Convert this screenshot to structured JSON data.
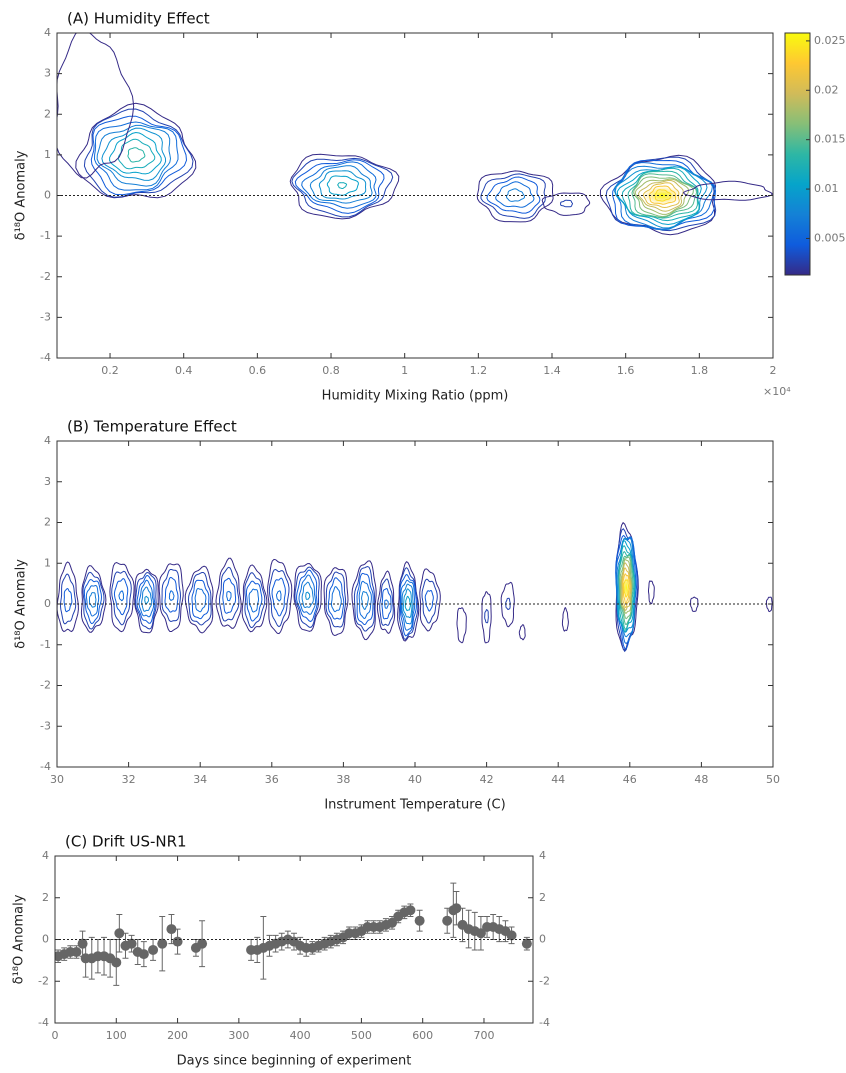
{
  "chart_data": [
    {
      "type": "contour",
      "title": "(A) Humidity Effect",
      "x_label": "Humidity Mixing Ratio (ppm)",
      "x_scale_label": "×10⁴",
      "y_label": "δ¹⁸O Anomaly",
      "xlim": [
        0.056,
        2
      ],
      "xticks": [
        0.2,
        0.4,
        0.6,
        0.8,
        1,
        1.2,
        1.4,
        1.6,
        1.8,
        2
      ],
      "ylim": [
        -4,
        4
      ],
      "yticks": [
        -4,
        -3,
        -2,
        -1,
        0,
        1,
        2,
        3,
        4
      ],
      "reference_line": 0,
      "clim": [
        0.0013,
        0.0258
      ],
      "cticks": [
        0.005,
        0.01,
        0.015,
        0.02,
        0.025
      ],
      "clusters": [
        {
          "x": 0.27,
          "y": 1.0,
          "peak": 0.014,
          "width": 0.3,
          "height": 2.2
        },
        {
          "x": 0.15,
          "y": 2.2,
          "peak": 0.002,
          "width": 0.2,
          "height": 3.4
        },
        {
          "x": 0.83,
          "y": 0.25,
          "peak": 0.012,
          "width": 0.28,
          "height": 1.5
        },
        {
          "x": 1.3,
          "y": 0.0,
          "peak": 0.008,
          "width": 0.2,
          "height": 1.2
        },
        {
          "x": 1.44,
          "y": -0.2,
          "peak": 0.003,
          "width": 0.12,
          "height": 0.5
        },
        {
          "x": 1.7,
          "y": 0.0,
          "peak": 0.025,
          "width": 0.3,
          "height": 1.8
        },
        {
          "x": 1.88,
          "y": 0.1,
          "peak": 0.002,
          "width": 0.22,
          "height": 0.4
        }
      ]
    },
    {
      "type": "contour",
      "title": "(B) Temperature Effect",
      "x_label": "Instrument Temperature (C)",
      "y_label": "δ¹⁸O Anomaly",
      "xlim": [
        30,
        50
      ],
      "xticks": [
        30,
        32,
        34,
        36,
        38,
        40,
        42,
        44,
        46,
        48,
        50
      ],
      "ylim": [
        -4,
        4
      ],
      "yticks": [
        -4,
        -3,
        -2,
        -1,
        0,
        1,
        2,
        3,
        4
      ],
      "reference_line": 0,
      "clim": [
        0.0013,
        0.0258
      ],
      "clusters": [
        {
          "x": 30.3,
          "y": 0.1,
          "peak": 0.005,
          "width": 0.5,
          "height": 1.6
        },
        {
          "x": 31.0,
          "y": 0.1,
          "peak": 0.008,
          "width": 0.6,
          "height": 1.5
        },
        {
          "x": 31.8,
          "y": 0.2,
          "peak": 0.006,
          "width": 0.6,
          "height": 1.6
        },
        {
          "x": 32.5,
          "y": 0.1,
          "peak": 0.009,
          "width": 0.6,
          "height": 1.5
        },
        {
          "x": 33.2,
          "y": 0.2,
          "peak": 0.006,
          "width": 0.6,
          "height": 1.6
        },
        {
          "x": 34.0,
          "y": 0.1,
          "peak": 0.007,
          "width": 0.7,
          "height": 1.5
        },
        {
          "x": 34.8,
          "y": 0.2,
          "peak": 0.006,
          "width": 0.6,
          "height": 1.6
        },
        {
          "x": 35.5,
          "y": 0.1,
          "peak": 0.007,
          "width": 0.6,
          "height": 1.5
        },
        {
          "x": 36.2,
          "y": 0.2,
          "peak": 0.006,
          "width": 0.6,
          "height": 1.7
        },
        {
          "x": 37.0,
          "y": 0.2,
          "peak": 0.009,
          "width": 0.7,
          "height": 1.6
        },
        {
          "x": 37.8,
          "y": 0.1,
          "peak": 0.007,
          "width": 0.6,
          "height": 1.6
        },
        {
          "x": 38.6,
          "y": 0.1,
          "peak": 0.008,
          "width": 0.6,
          "height": 1.8
        },
        {
          "x": 39.2,
          "y": 0.0,
          "peak": 0.006,
          "width": 0.4,
          "height": 1.4
        },
        {
          "x": 39.8,
          "y": 0.0,
          "peak": 0.011,
          "width": 0.5,
          "height": 1.8
        },
        {
          "x": 40.4,
          "y": 0.1,
          "peak": 0.005,
          "width": 0.5,
          "height": 1.4
        },
        {
          "x": 41.3,
          "y": -0.5,
          "peak": 0.002,
          "width": 0.2,
          "height": 0.8
        },
        {
          "x": 42.0,
          "y": -0.3,
          "peak": 0.003,
          "width": 0.2,
          "height": 1.2
        },
        {
          "x": 42.6,
          "y": 0.0,
          "peak": 0.003,
          "width": 0.3,
          "height": 1.0
        },
        {
          "x": 43.0,
          "y": -0.7,
          "peak": 0.002,
          "width": 0.1,
          "height": 0.3
        },
        {
          "x": 44.2,
          "y": -0.4,
          "peak": 0.002,
          "width": 0.1,
          "height": 0.5
        },
        {
          "x": 45.9,
          "y": 0.4,
          "peak": 0.025,
          "width": 0.55,
          "height": 2.9
        },
        {
          "x": 46.6,
          "y": 0.3,
          "peak": 0.002,
          "width": 0.1,
          "height": 0.5
        },
        {
          "x": 47.8,
          "y": 0.0,
          "peak": 0.002,
          "width": 0.15,
          "height": 0.3
        },
        {
          "x": 49.9,
          "y": 0.0,
          "peak": 0.002,
          "width": 0.1,
          "height": 0.3
        }
      ]
    },
    {
      "type": "scatter",
      "title": "(C) Drift US-NR1",
      "x_label": "Days since beginning of experiment",
      "y_label": "δ¹⁸O Anomaly",
      "xlim": [
        0,
        780
      ],
      "xticks": [
        0,
        100,
        200,
        300,
        400,
        500,
        600,
        700
      ],
      "ylim": [
        -4,
        4
      ],
      "yticks": [
        -4,
        -2,
        0,
        2,
        4
      ],
      "y2lim": [
        -4,
        4
      ],
      "y2ticks": [
        -4,
        -2,
        0,
        2,
        4
      ],
      "reference_line": 0,
      "color": "#666666",
      "x": [
        5,
        15,
        25,
        35,
        45,
        50,
        60,
        70,
        80,
        90,
        100,
        105,
        115,
        125,
        135,
        145,
        160,
        175,
        190,
        200,
        230,
        240,
        320,
        330,
        340,
        350,
        360,
        370,
        380,
        390,
        400,
        410,
        420,
        430,
        440,
        450,
        460,
        470,
        480,
        490,
        500,
        510,
        520,
        530,
        540,
        550,
        560,
        570,
        580,
        595,
        640,
        650,
        655,
        665,
        675,
        685,
        695,
        705,
        715,
        725,
        735,
        745,
        770
      ],
      "values": [
        -0.8,
        -0.7,
        -0.6,
        -0.6,
        -0.2,
        -0.9,
        -0.9,
        -0.8,
        -0.8,
        -0.9,
        -1.1,
        0.3,
        -0.3,
        -0.2,
        -0.6,
        -0.7,
        -0.5,
        -0.2,
        0.5,
        -0.1,
        -0.4,
        -0.2,
        -0.5,
        -0.5,
        -0.4,
        -0.3,
        -0.2,
        -0.1,
        0,
        -0.1,
        -0.3,
        -0.4,
        -0.4,
        -0.3,
        -0.2,
        -0.1,
        0,
        0.1,
        0.3,
        0.3,
        0.4,
        0.6,
        0.6,
        0.6,
        0.7,
        0.8,
        1.1,
        1.3,
        1.4,
        0.9,
        0.9,
        1.4,
        1.5,
        0.7,
        0.5,
        0.4,
        0.3,
        0.6,
        0.6,
        0.5,
        0.4,
        0.2,
        -0.2
      ],
      "errors": [
        0.3,
        0.3,
        0.3,
        0.3,
        0.6,
        0.9,
        1.0,
        0.8,
        0.9,
        0.9,
        1.1,
        0.9,
        0.6,
        0.4,
        0.6,
        0.6,
        0.5,
        1.3,
        0.7,
        0.6,
        0.4,
        1.1,
        0.5,
        0.6,
        1.5,
        0.5,
        0.4,
        0.4,
        0.4,
        0.4,
        0.4,
        0.4,
        0.3,
        0.3,
        0.3,
        0.3,
        0.3,
        0.3,
        0.3,
        0.3,
        0.3,
        0.3,
        0.3,
        0.3,
        0.3,
        0.3,
        0.3,
        0.3,
        0.3,
        0.5,
        0.6,
        1.3,
        0.8,
        0.8,
        0.9,
        0.9,
        0.8,
        0.5,
        0.6,
        0.6,
        0.5,
        0.4,
        0.3
      ]
    }
  ]
}
